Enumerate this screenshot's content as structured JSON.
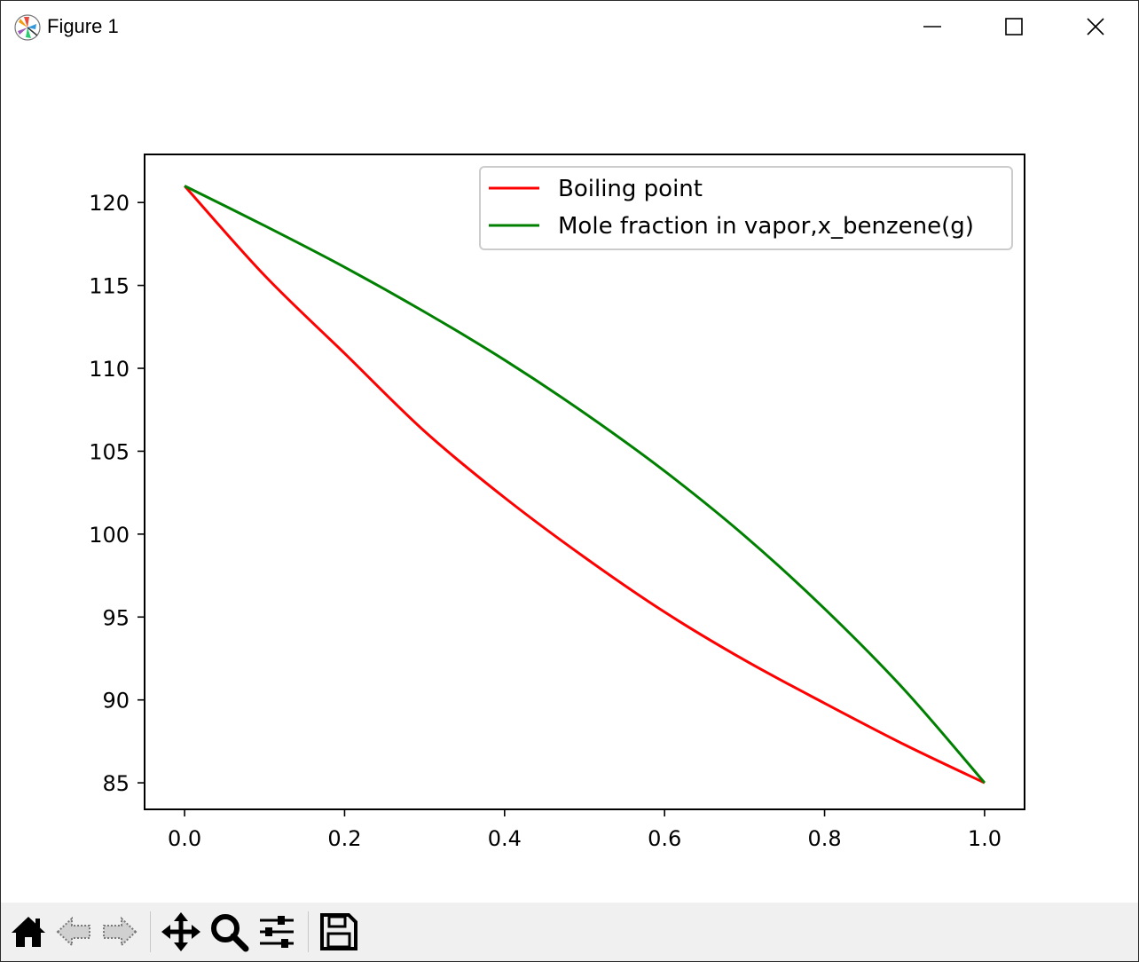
{
  "window": {
    "title": "Figure 1"
  },
  "window_controls": [
    "minimize",
    "maximize",
    "close"
  ],
  "toolbar": {
    "tools": [
      {
        "name": "home-icon",
        "label": "Home"
      },
      {
        "name": "back-arrow-icon",
        "label": "Back"
      },
      {
        "name": "forward-arrow-icon",
        "label": "Forward"
      },
      {
        "name": "pan-icon",
        "label": "Pan"
      },
      {
        "name": "zoom-icon",
        "label": "Zoom"
      },
      {
        "name": "configure-subplots-icon",
        "label": "Configure subplots"
      },
      {
        "name": "save-icon",
        "label": "Save"
      }
    ]
  },
  "colors": {
    "boiling": "#ff0000",
    "vapor": "#008000",
    "toolbar_bg": "#f0f0f0"
  },
  "chart_data": {
    "type": "line",
    "title": "",
    "xlabel": "",
    "ylabel": "",
    "xlim": [
      -0.05,
      1.05
    ],
    "ylim": [
      83.4,
      122.9
    ],
    "xticks": [
      "0.0",
      "0.2",
      "0.4",
      "0.6",
      "0.8",
      "1.0"
    ],
    "yticks": [
      "85",
      "90",
      "95",
      "100",
      "105",
      "110",
      "115",
      "120"
    ],
    "grid": false,
    "legend_position": "upper right",
    "series": [
      {
        "name": "Boiling point",
        "color": "#ff0000",
        "x": [
          0.0,
          0.1,
          0.2,
          0.3,
          0.4,
          0.5,
          0.6,
          0.7,
          0.8,
          0.9,
          1.0
        ],
        "y": [
          121.0,
          115.6,
          110.9,
          106.2,
          102.2,
          98.6,
          95.3,
          92.4,
          89.8,
          87.3,
          85.0
        ]
      },
      {
        "name": "Mole fraction in vapor,x_benzene(g)",
        "color": "#008000",
        "x": [
          0.0,
          0.1,
          0.2,
          0.3,
          0.4,
          0.5,
          0.6,
          0.7,
          0.8,
          0.9,
          1.0
        ],
        "y": [
          121.0,
          118.6,
          116.1,
          113.4,
          110.5,
          107.3,
          103.8,
          99.9,
          95.5,
          90.6,
          85.0
        ]
      }
    ]
  }
}
